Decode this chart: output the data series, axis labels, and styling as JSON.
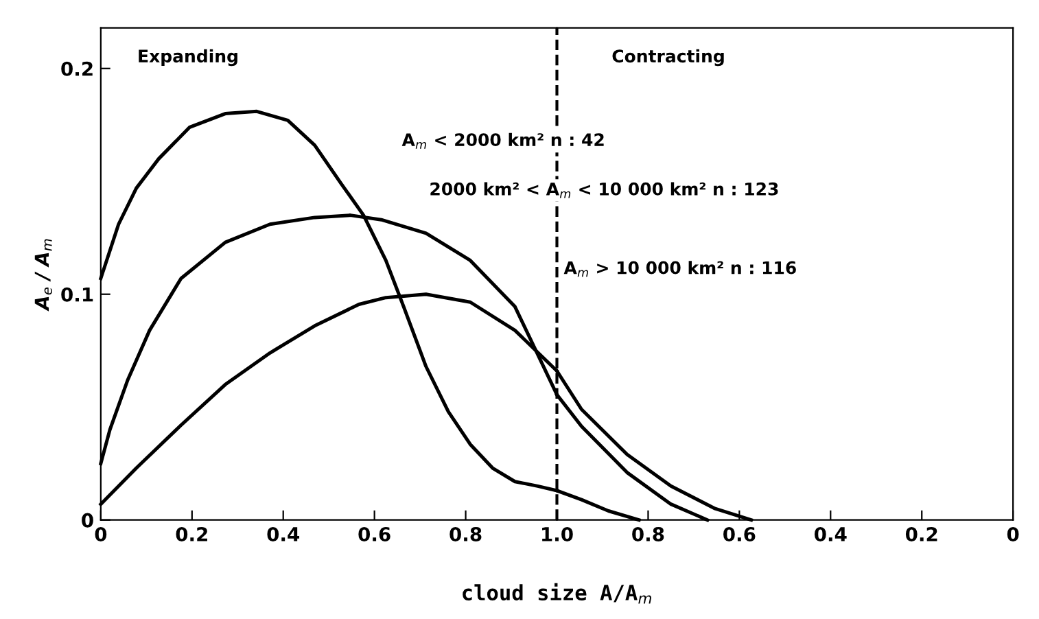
{
  "chart_data": [
    {
      "type": "line",
      "xlabel": "cloud size A/A$_{m}$",
      "ylabel": "A$_{e}$ / A$_{m}$",
      "xlim": [
        0,
        1
      ],
      "ylim": [
        0,
        0.218
      ],
      "xticks": [
        0,
        0.2,
        0.4,
        0.6,
        0.8,
        {
          "value": 1.0,
          "label": "1.0"
        }
      ],
      "yticks": [
        0,
        0.1,
        0.2
      ],
      "grid": false,
      "marker": "none",
      "line_style": "solid",
      "annotations": [
        "Expanding",
        "A$_{m}$ < 2000 km² n : 42",
        "2000 km² < A$_{m}$ < 10 000 km² n : 123"
      ],
      "series": [
        {
          "color": "#000000",
          "x": [
            0,
            0.039,
            0.078,
            0.127,
            0.195,
            0.273,
            0.342,
            0.41,
            0.469,
            0.527,
            0.576,
            0.625,
            0.664,
            0.713,
            0.762,
            0.81,
            0.859,
            0.908,
            0.958,
            1.0
          ],
          "values": [
            0.107,
            0.131,
            0.147,
            0.16,
            0.174,
            0.18,
            0.181,
            0.177,
            0.166,
            0.149,
            0.135,
            0.115,
            0.0945,
            0.068,
            0.048,
            0.0335,
            0.023,
            0.017,
            0.015,
            0.013
          ]
        },
        {
          "color": "#000000",
          "x": [
            0,
            0.02,
            0.059,
            0.107,
            0.176,
            0.273,
            0.371,
            0.469,
            0.547,
            0.615,
            0.713,
            0.81,
            0.908,
            1.0
          ],
          "values": [
            0.025,
            0.04,
            0.062,
            0.084,
            0.107,
            0.123,
            0.131,
            0.134,
            0.135,
            0.133,
            0.127,
            0.115,
            0.0945,
            0.0555
          ]
        },
        {
          "color": "#000000",
          "x": [
            0,
            0.078,
            0.176,
            0.273,
            0.371,
            0.469,
            0.566,
            0.625,
            0.713,
            0.81,
            0.908,
            1.0
          ],
          "values": [
            0.007,
            0.023,
            0.042,
            0.06,
            0.074,
            0.086,
            0.0955,
            0.0985,
            0.1,
            0.0965,
            0.084,
            0.066
          ]
        }
      ]
    },
    {
      "type": "line",
      "xlim": [
        1,
        0
      ],
      "ylim": [
        0,
        0.218
      ],
      "xticks": [
        0.8,
        0.6,
        0.4,
        0.2,
        0
      ],
      "yticks": [
        0,
        0.1,
        0.2
      ],
      "tick_labels": "x",
      "grid": false,
      "marker": "none",
      "line_style": "solid",
      "ref_lines": [
        {
          "axis": "x",
          "value": 1.0,
          "line_style": "dashed",
          "color": "#000000"
        }
      ],
      "annotations": [
        "Contracting",
        "A$_{m}$ > 10 000 km² n : 116"
      ],
      "series": [
        {
          "color": "#000000",
          "x": [
            1.0,
            0.946,
            0.887,
            0.82
          ],
          "values": [
            0.013,
            0.009,
            0.004,
            0
          ]
        },
        {
          "color": "#000000",
          "x": [
            1.0,
            0.946,
            0.846,
            0.75,
            0.67
          ],
          "values": [
            0.0555,
            0.0415,
            0.021,
            0.007,
            0
          ]
        },
        {
          "color": "#000000",
          "x": [
            1.0,
            0.946,
            0.846,
            0.75,
            0.653,
            0.574
          ],
          "values": [
            0.066,
            0.049,
            0.029,
            0.015,
            0.005,
            0
          ]
        }
      ]
    }
  ]
}
